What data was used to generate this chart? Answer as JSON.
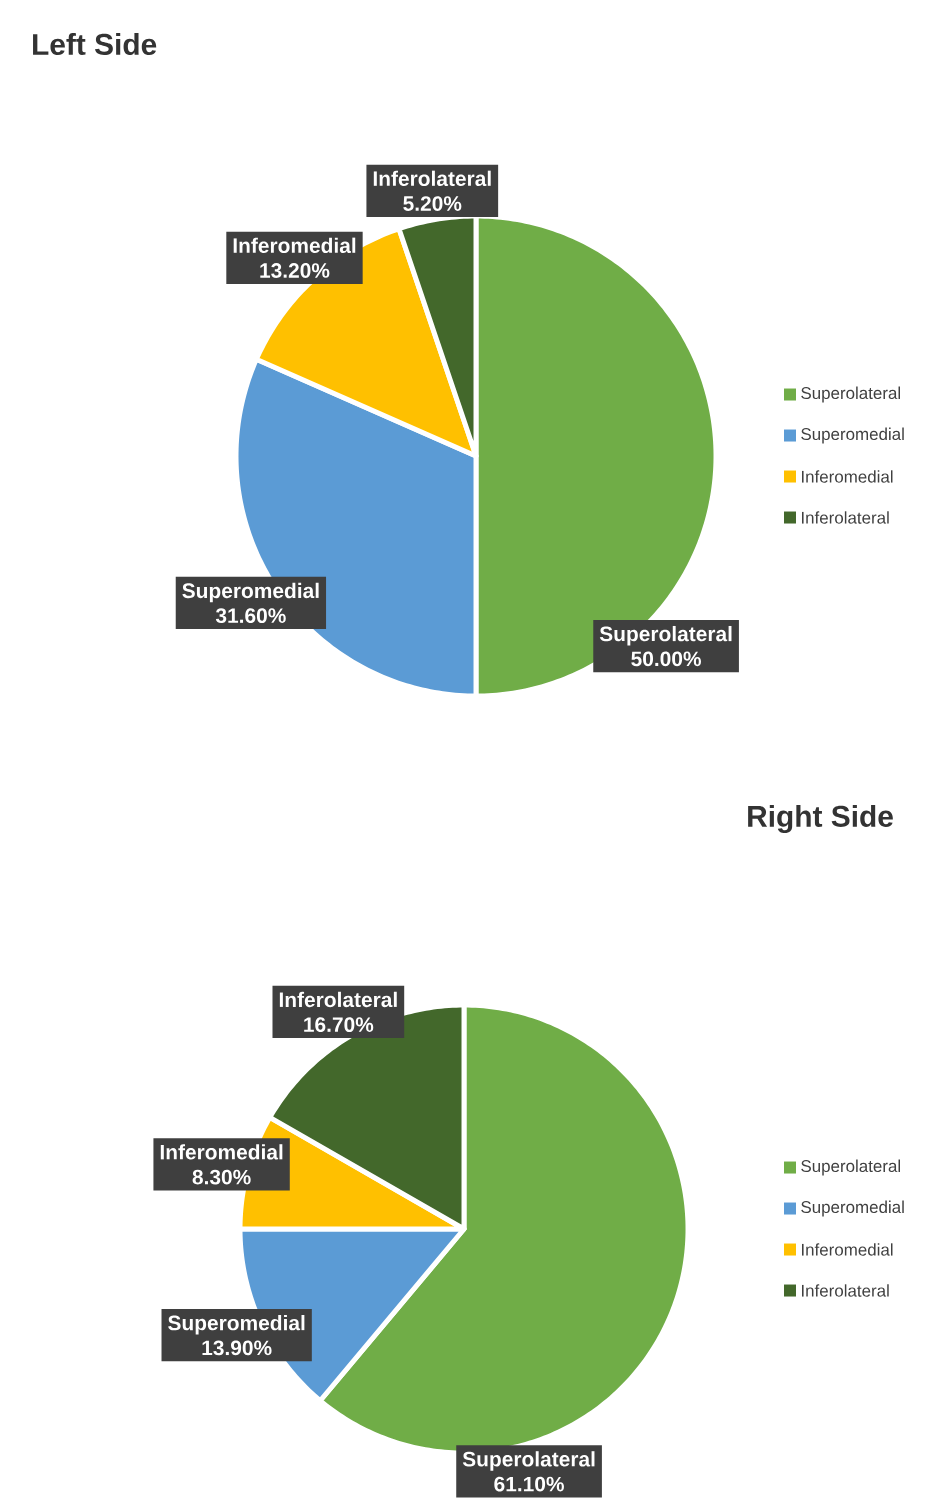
{
  "chart_data": [
    {
      "type": "pie",
      "title": "Left Side",
      "categories": [
        "Superolateral",
        "Superomedial",
        "Inferomedial",
        "Inferolateral"
      ],
      "values": [
        50.0,
        31.6,
        13.2,
        5.2
      ],
      "colors": [
        "#70ad47",
        "#5b9bd5",
        "#ffc000",
        "#43682b"
      ],
      "value_labels": [
        "50.00%",
        "31.60%",
        "13.20%",
        "5.20%"
      ],
      "legend": "right"
    },
    {
      "type": "pie",
      "title": "Right Side",
      "categories": [
        "Superolateral",
        "Superomedial",
        "Inferomedial",
        "Inferolateral"
      ],
      "values": [
        61.1,
        13.9,
        8.3,
        16.7
      ],
      "colors": [
        "#70ad47",
        "#5b9bd5",
        "#ffc000",
        "#43682b"
      ],
      "value_labels": [
        "61.10%",
        "13.90%",
        "8.30%",
        "16.70%"
      ],
      "legend": "right"
    }
  ]
}
